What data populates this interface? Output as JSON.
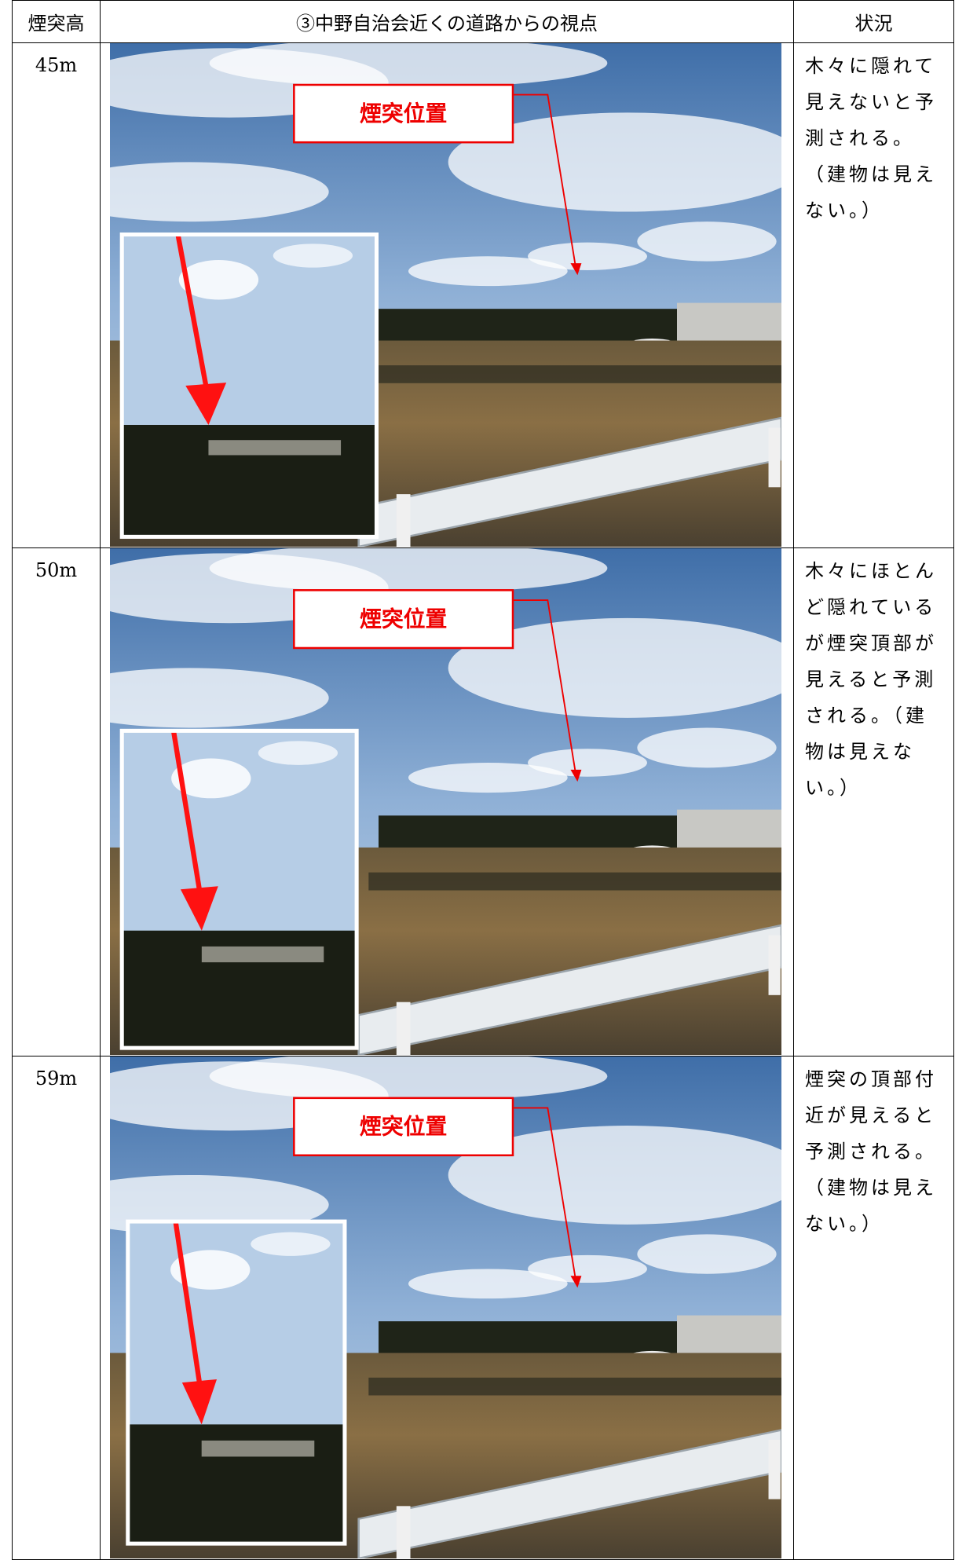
{
  "table": {
    "headers": [
      "煙突高",
      "③中野自治会近くの道路からの視点",
      "状況"
    ],
    "rows": [
      {
        "height": "45m",
        "callout": "煙突位置",
        "status": "木々に隠れて見えないと予測される。（建物は見えない。）"
      },
      {
        "height": "50m",
        "callout": "煙突位置",
        "status": "木々にほとんど隠れているが煙突頂部が見えると予測される。（建物は見えない。）"
      },
      {
        "height": "59m",
        "callout": "煙突位置",
        "status": "煙突の頂部付近が見えると予測される。（建物は見えない。）"
      }
    ]
  }
}
